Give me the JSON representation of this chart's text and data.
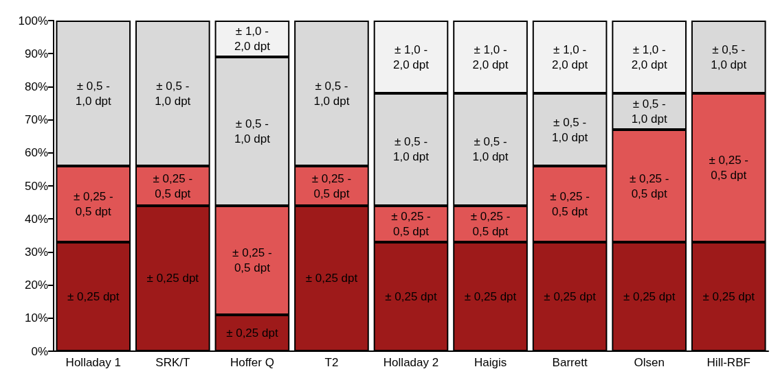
{
  "chart_data": {
    "type": "bar",
    "stacked": true,
    "categories": [
      "Holladay 1",
      "SRK/T",
      "Hoffer Q",
      "T2",
      "Holladay 2",
      "Haigis",
      "Barrett",
      "Olsen",
      "Hill-RBF"
    ],
    "series": [
      {
        "name": "± 0,25 dpt",
        "color": "#9e1a1a",
        "values": [
          33,
          44,
          11,
          44,
          33,
          33,
          33,
          33,
          33
        ]
      },
      {
        "name": "± 0,25 - 0,5 dpt",
        "color": "#e05555",
        "values": [
          23,
          12,
          33,
          12,
          11,
          11,
          23,
          34,
          45
        ]
      },
      {
        "name": "± 0,5 - 1,0 dpt",
        "color": "#d9d9d9",
        "values": [
          44,
          44,
          45,
          44,
          34,
          34,
          22,
          11,
          22
        ]
      },
      {
        "name": "± 1,0 - 2,0 dpt",
        "color": "#f2f2f2",
        "values": [
          0,
          0,
          11,
          0,
          22,
          22,
          22,
          22,
          0
        ]
      }
    ],
    "ylim": [
      0,
      100
    ],
    "yticks": [
      {
        "value": 0,
        "label": "0%"
      },
      {
        "value": 10,
        "label": "10%"
      },
      {
        "value": 20,
        "label": "20%"
      },
      {
        "value": 30,
        "label": "30%"
      },
      {
        "value": 40,
        "label": "40%"
      },
      {
        "value": 50,
        "label": "50%"
      },
      {
        "value": 60,
        "label": "60%"
      },
      {
        "value": 70,
        "label": "70%"
      },
      {
        "value": 80,
        "label": "80%"
      },
      {
        "value": 90,
        "label": "90%"
      },
      {
        "value": 100,
        "label": "100%"
      }
    ],
    "grid": false
  }
}
